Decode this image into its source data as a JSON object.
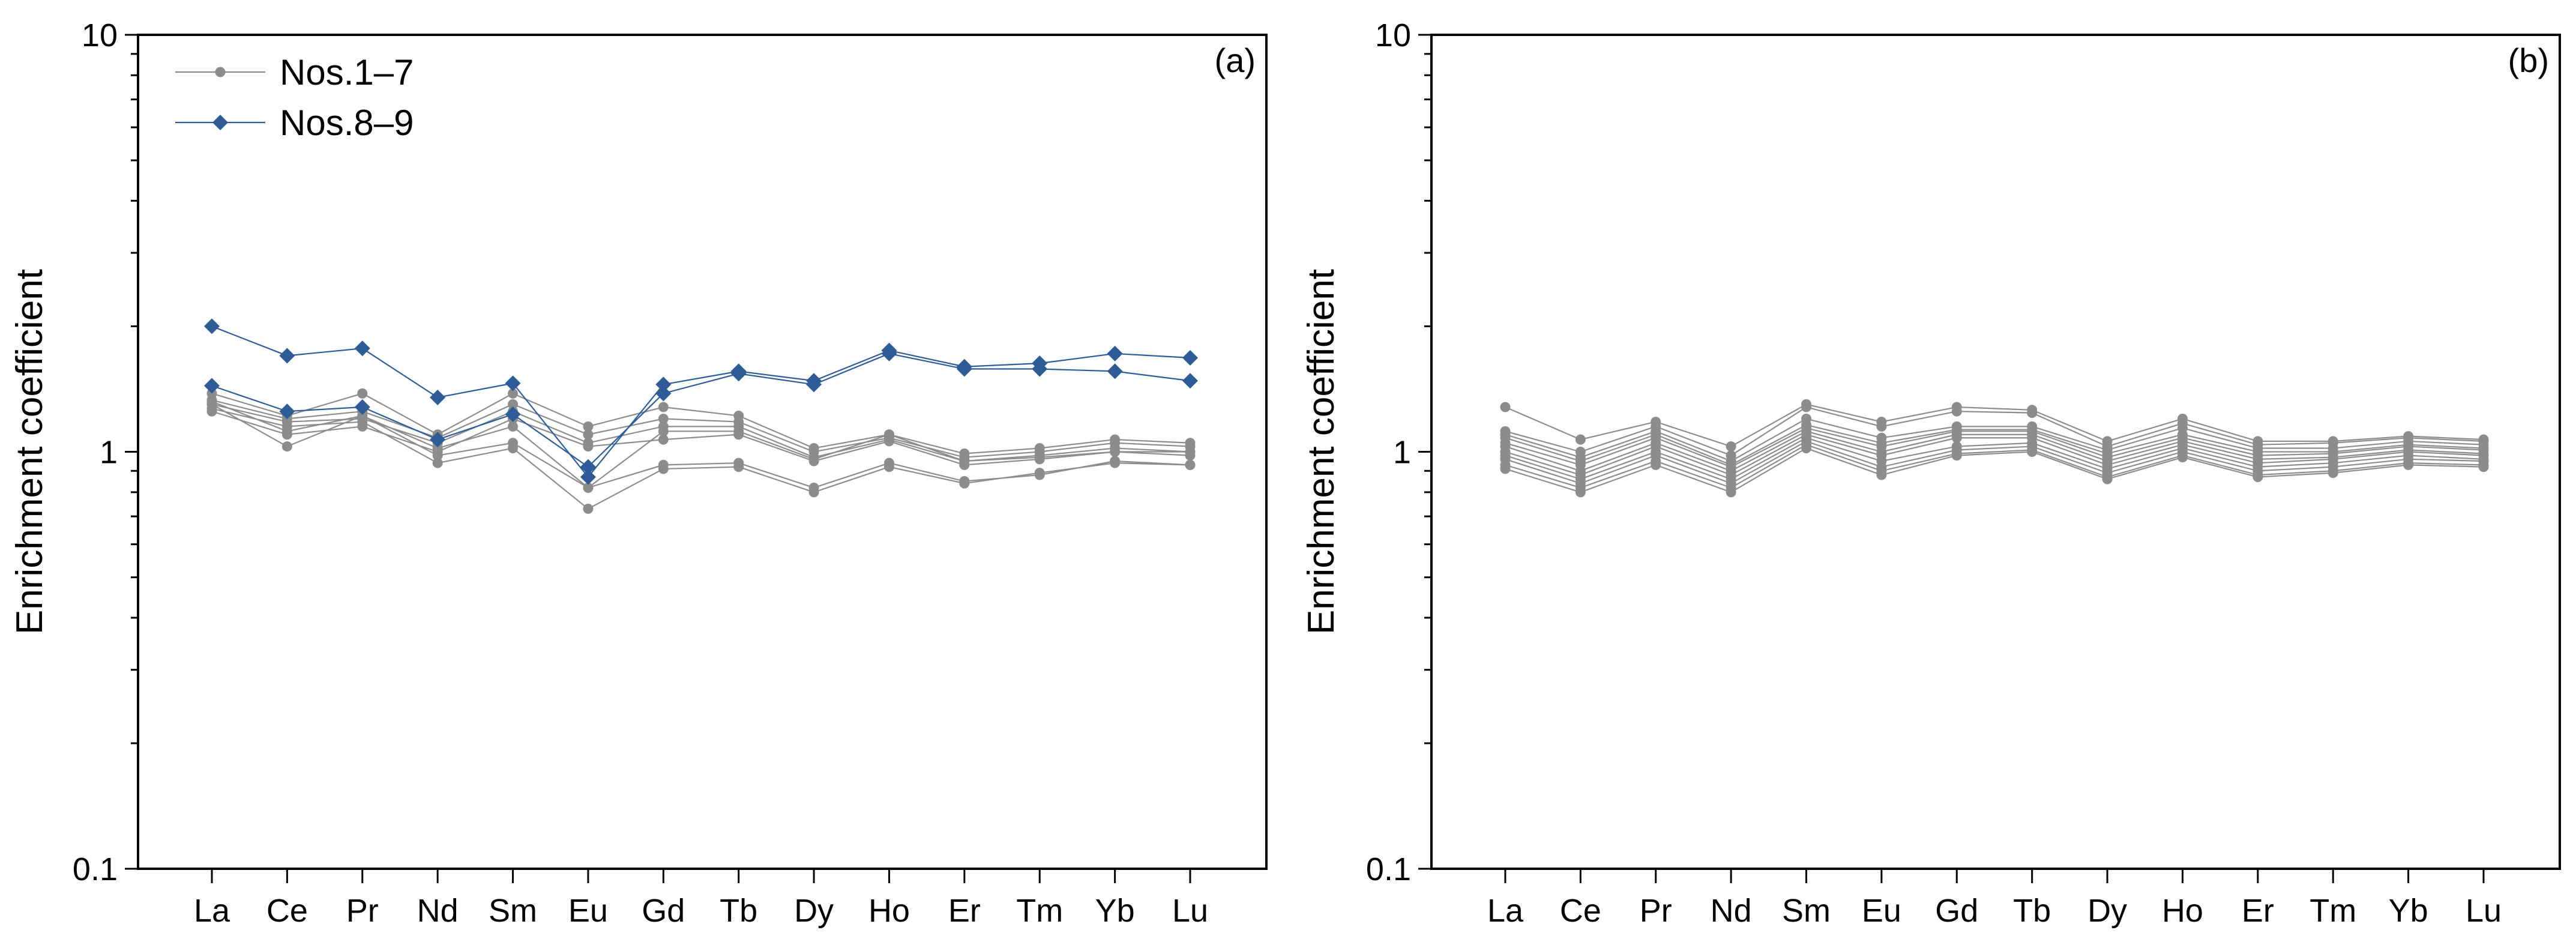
{
  "chart_data": [
    {
      "type": "line",
      "panel_label": "(a)",
      "ylabel": "Enrichment coefficient",
      "yscale": "log",
      "ylim": [
        0.1,
        10
      ],
      "ytick_labels": [
        "0.1",
        "1",
        "10"
      ],
      "yticks": [
        0.1,
        1,
        10
      ],
      "categories": [
        "La",
        "Ce",
        "Pr",
        "Nd",
        "Sm",
        "Eu",
        "Gd",
        "Tb",
        "Dy",
        "Ho",
        "Er",
        "Tm",
        "Yb",
        "Lu"
      ],
      "legend": {
        "placement": "top-left",
        "entries": [
          "Nos.1–7",
          "Nos.8–9"
        ]
      },
      "series": [
        {
          "name": "Nos.1–7",
          "group": 1,
          "values": [
            1.38,
            1.22,
            1.38,
            1.1,
            1.38,
            1.15,
            1.28,
            1.22,
            1.02,
            1.1,
            0.99,
            1.02,
            1.07,
            1.05
          ]
        },
        {
          "name": "Nos.1–7",
          "group": 1,
          "values": [
            1.33,
            1.2,
            1.25,
            1.08,
            1.3,
            1.1,
            1.2,
            1.18,
            1.0,
            1.08,
            0.97,
            1.0,
            1.05,
            1.03
          ]
        },
        {
          "name": "Nos.1–7",
          "group": 1,
          "values": [
            1.3,
            1.18,
            1.2,
            1.05,
            1.25,
            1.05,
            1.15,
            1.15,
            0.97,
            1.07,
            0.95,
            0.98,
            1.02,
            1.0
          ]
        },
        {
          "name": "Nos.1–7",
          "group": 1,
          "values": [
            1.25,
            1.1,
            1.15,
            1.0,
            1.2,
            1.03,
            1.07,
            1.1,
            0.95,
            1.06,
            0.93,
            0.96,
            1.0,
            0.98
          ]
        },
        {
          "name": "Nos.1–7",
          "group": 1,
          "values": [
            1.3,
            1.03,
            1.22,
            0.98,
            1.05,
            0.82,
            0.93,
            0.94,
            0.82,
            0.94,
            0.85,
            0.88,
            0.95,
            0.93
          ]
        },
        {
          "name": "Nos.1–7",
          "group": 1,
          "values": [
            1.27,
            1.15,
            1.18,
            0.94,
            1.02,
            0.73,
            0.91,
            0.92,
            0.8,
            0.92,
            0.84,
            0.89,
            0.94,
            0.93
          ]
        },
        {
          "name": "Nos.1–7",
          "group": 1,
          "values": [
            1.32,
            1.12,
            1.22,
            1.02,
            1.15,
            0.82,
            1.12,
            1.12,
            0.96,
            1.1,
            0.95,
            0.97,
            1.0,
            1.0
          ]
        },
        {
          "name": "Nos.8–9",
          "group": 2,
          "values": [
            2.0,
            1.7,
            1.77,
            1.35,
            1.46,
            0.87,
            1.45,
            1.56,
            1.48,
            1.75,
            1.6,
            1.63,
            1.72,
            1.68
          ]
        },
        {
          "name": "Nos.8–9",
          "group": 2,
          "values": [
            1.44,
            1.25,
            1.28,
            1.07,
            1.23,
            0.92,
            1.38,
            1.54,
            1.45,
            1.72,
            1.58,
            1.58,
            1.56,
            1.48
          ]
        }
      ]
    },
    {
      "type": "line",
      "panel_label": "(b)",
      "ylabel": "Enrichment coefficient",
      "yscale": "log",
      "ylim": [
        0.1,
        10
      ],
      "ytick_labels": [
        "0.1",
        "1",
        "10"
      ],
      "yticks": [
        0.1,
        1,
        10
      ],
      "categories": [
        "La",
        "Ce",
        "Pr",
        "Nd",
        "Sm",
        "Eu",
        "Gd",
        "Tb",
        "Dy",
        "Ho",
        "Er",
        "Tm",
        "Yb",
        "Lu"
      ],
      "series": [
        {
          "name": "",
          "group": 1,
          "values": [
            1.28,
            1.07,
            1.18,
            1.03,
            1.3,
            1.18,
            1.28,
            1.26,
            1.06,
            1.2,
            1.06,
            1.06,
            1.09,
            1.07
          ]
        },
        {
          "name": "",
          "group": 1,
          "values": [
            1.12,
            1.0,
            1.15,
            0.98,
            1.28,
            1.15,
            1.25,
            1.24,
            1.03,
            1.17,
            1.04,
            1.05,
            1.08,
            1.06
          ]
        },
        {
          "name": "",
          "group": 1,
          "values": [
            1.1,
            0.97,
            1.12,
            0.95,
            1.2,
            1.08,
            1.15,
            1.15,
            1.01,
            1.14,
            1.02,
            1.02,
            1.06,
            1.04
          ]
        },
        {
          "name": "",
          "group": 1,
          "values": [
            1.08,
            0.95,
            1.1,
            0.93,
            1.16,
            1.05,
            1.13,
            1.13,
            0.99,
            1.1,
            1.0,
            1.0,
            1.04,
            1.02
          ]
        },
        {
          "name": "",
          "group": 1,
          "values": [
            1.05,
            0.93,
            1.08,
            0.92,
            1.14,
            1.03,
            1.12,
            1.12,
            0.97,
            1.08,
            0.98,
            0.99,
            1.03,
            1.01
          ]
        },
        {
          "name": "",
          "group": 1,
          "values": [
            1.03,
            0.9,
            1.05,
            0.9,
            1.12,
            1.0,
            1.1,
            1.1,
            0.95,
            1.06,
            0.96,
            0.97,
            1.01,
            0.99
          ]
        },
        {
          "name": "",
          "group": 1,
          "values": [
            1.0,
            0.88,
            1.03,
            0.88,
            1.1,
            0.98,
            1.08,
            1.08,
            0.93,
            1.04,
            0.94,
            0.96,
            1.0,
            0.98
          ]
        },
        {
          "name": "",
          "group": 1,
          "values": [
            0.98,
            0.86,
            1.0,
            0.86,
            1.08,
            0.95,
            1.03,
            1.05,
            0.91,
            1.02,
            0.92,
            0.94,
            0.98,
            0.96
          ]
        },
        {
          "name": "",
          "group": 1,
          "values": [
            0.96,
            0.84,
            0.98,
            0.84,
            1.06,
            0.92,
            1.01,
            1.03,
            0.89,
            1.0,
            0.9,
            0.92,
            0.96,
            0.95
          ]
        },
        {
          "name": "",
          "group": 1,
          "values": [
            0.93,
            0.82,
            0.95,
            0.82,
            1.04,
            0.9,
            0.99,
            1.01,
            0.87,
            0.98,
            0.88,
            0.9,
            0.94,
            0.93
          ]
        },
        {
          "name": "",
          "group": 1,
          "values": [
            0.91,
            0.8,
            0.93,
            0.8,
            1.02,
            0.88,
            0.98,
            1.0,
            0.86,
            0.97,
            0.87,
            0.89,
            0.93,
            0.92
          ]
        }
      ]
    }
  ],
  "colors": {
    "group1": "#8c8c8c",
    "group2": "#2e5c96",
    "axis": "#000000"
  }
}
